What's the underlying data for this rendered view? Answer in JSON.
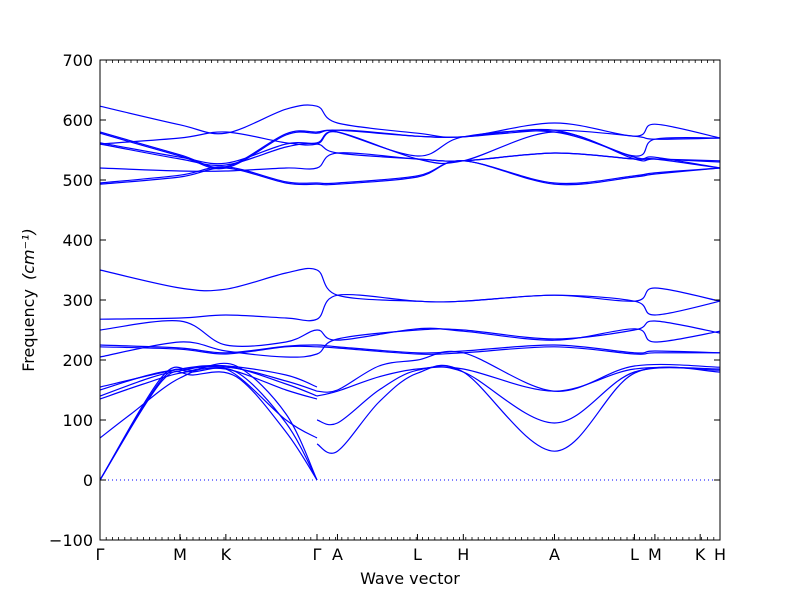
{
  "chart_data": {
    "type": "line",
    "title": "",
    "xlabel": "Wave vector",
    "ylabel": "Frequency",
    "ylabel_unit": "(cm⁻¹)",
    "ylim": [
      -100,
      700
    ],
    "yticks": [
      -100,
      0,
      100,
      200,
      300,
      400,
      500,
      600,
      700
    ],
    "y_tick_labels": [
      "−100",
      "0",
      "100",
      "200",
      "300",
      "400",
      "500",
      "600",
      "700"
    ],
    "x_high_symmetry_points": [
      {
        "label": "Γ",
        "x": 0.0
      },
      {
        "label": "M",
        "x": 0.129
      },
      {
        "label": "K",
        "x": 0.203
      },
      {
        "label": "Γ",
        "x": 0.35
      },
      {
        "label": "A",
        "x": 0.383
      },
      {
        "label": "L",
        "x": 0.512
      },
      {
        "label": "H",
        "x": 0.586
      },
      {
        "label": "A",
        "x": 0.733
      },
      {
        "label": "L",
        "x": 0.862
      },
      {
        "label": "M",
        "x": 0.895
      },
      {
        "label": "K",
        "x": 0.968
      },
      {
        "label": "H",
        "x": 1.0
      }
    ],
    "zero_line": {
      "y": 0,
      "style": "dotted"
    },
    "colors": {
      "band": "#0000ff",
      "axis": "#000000"
    },
    "series": [
      {
        "points": [
          [
            0,
            0
          ],
          [
            0.1,
            165
          ],
          [
            0.15,
            175
          ],
          [
            0.22,
            172
          ],
          [
            0.3,
            80
          ],
          [
            0.35,
            0
          ]
        ]
      },
      {
        "points": [
          [
            0,
            0
          ],
          [
            0.1,
            168
          ],
          [
            0.15,
            180
          ],
          [
            0.22,
            180
          ],
          [
            0.3,
            95
          ],
          [
            0.35,
            0
          ]
        ]
      },
      {
        "points": [
          [
            0,
            0
          ],
          [
            0.1,
            172
          ],
          [
            0.15,
            183
          ],
          [
            0.22,
            190
          ],
          [
            0.3,
            110
          ],
          [
            0.35,
            0
          ]
        ]
      },
      {
        "points": [
          [
            0,
            70
          ],
          [
            0.05,
            110
          ],
          [
            0.129,
            170
          ],
          [
            0.203,
            185
          ],
          [
            0.3,
            100
          ],
          [
            0.35,
            70
          ]
        ]
      },
      {
        "points": [
          [
            0,
            135
          ],
          [
            0.07,
            160
          ],
          [
            0.129,
            178
          ],
          [
            0.203,
            185
          ],
          [
            0.3,
            150
          ],
          [
            0.35,
            135
          ]
        ]
      },
      {
        "points": [
          [
            0,
            140
          ],
          [
            0.08,
            170
          ],
          [
            0.129,
            182
          ],
          [
            0.203,
            190
          ],
          [
            0.3,
            160
          ],
          [
            0.35,
            140
          ]
        ]
      },
      {
        "points": [
          [
            0,
            150
          ],
          [
            0.1,
            180
          ],
          [
            0.203,
            188
          ],
          [
            0.3,
            165
          ],
          [
            0.35,
            148
          ]
        ]
      },
      {
        "points": [
          [
            0,
            155
          ],
          [
            0.129,
            185
          ],
          [
            0.203,
            190
          ],
          [
            0.3,
            175
          ],
          [
            0.35,
            155
          ]
        ]
      },
      {
        "points": [
          [
            0.35,
            100
          ],
          [
            0.383,
            95
          ],
          [
            0.45,
            150
          ],
          [
            0.512,
            183
          ],
          [
            0.586,
            180
          ],
          [
            0.733,
            95
          ],
          [
            0.862,
            180
          ],
          [
            1.0,
            183
          ]
        ]
      },
      {
        "points": [
          [
            0.35,
            60
          ],
          [
            0.383,
            48
          ],
          [
            0.45,
            130
          ],
          [
            0.512,
            178
          ],
          [
            0.586,
            180
          ],
          [
            0.733,
            48
          ],
          [
            0.862,
            178
          ],
          [
            1.0,
            180
          ]
        ]
      },
      {
        "points": [
          [
            0.35,
            140
          ],
          [
            0.383,
            148
          ],
          [
            0.45,
            172
          ],
          [
            0.512,
            185
          ],
          [
            0.586,
            185
          ],
          [
            0.733,
            148
          ],
          [
            0.862,
            185
          ],
          [
            1.0,
            185
          ]
        ]
      },
      {
        "points": [
          [
            0.35,
            148
          ],
          [
            0.383,
            150
          ],
          [
            0.45,
            190
          ],
          [
            0.512,
            200
          ],
          [
            0.586,
            212
          ],
          [
            0.733,
            148
          ],
          [
            0.862,
            190
          ],
          [
            1.0,
            188
          ]
        ]
      },
      {
        "points": [
          [
            0,
            205
          ],
          [
            0.129,
            230
          ],
          [
            0.203,
            215
          ],
          [
            0.3,
            205
          ],
          [
            0.35,
            210
          ],
          [
            0.383,
            235
          ],
          [
            0.512,
            250
          ],
          [
            0.586,
            250
          ],
          [
            0.733,
            235
          ],
          [
            0.862,
            250
          ],
          [
            0.895,
            265
          ],
          [
            1.0,
            245
          ]
        ]
      },
      {
        "points": [
          [
            0,
            225
          ],
          [
            0.129,
            220
          ],
          [
            0.203,
            212
          ],
          [
            0.3,
            223
          ],
          [
            0.35,
            225
          ],
          [
            0.383,
            222
          ],
          [
            0.512,
            212
          ],
          [
            0.586,
            215
          ],
          [
            0.733,
            225
          ],
          [
            0.862,
            212
          ],
          [
            0.895,
            215
          ],
          [
            1.0,
            212
          ]
        ]
      },
      {
        "points": [
          [
            0,
            222
          ],
          [
            0.129,
            218
          ],
          [
            0.203,
            210
          ],
          [
            0.3,
            222
          ],
          [
            0.35,
            222
          ],
          [
            0.383,
            220
          ],
          [
            0.512,
            210
          ],
          [
            0.586,
            212
          ],
          [
            0.733,
            222
          ],
          [
            0.862,
            210
          ],
          [
            0.895,
            212
          ],
          [
            1.0,
            212
          ]
        ]
      },
      {
        "points": [
          [
            0,
            250
          ],
          [
            0.129,
            265
          ],
          [
            0.203,
            225
          ],
          [
            0.3,
            230
          ],
          [
            0.35,
            250
          ],
          [
            0.383,
            233
          ],
          [
            0.512,
            252
          ],
          [
            0.586,
            248
          ],
          [
            0.733,
            233
          ],
          [
            0.862,
            252
          ],
          [
            0.895,
            230
          ],
          [
            1.0,
            248
          ]
        ]
      },
      {
        "points": [
          [
            0,
            268
          ],
          [
            0.129,
            270
          ],
          [
            0.203,
            275
          ],
          [
            0.3,
            270
          ],
          [
            0.35,
            268
          ],
          [
            0.383,
            308
          ],
          [
            0.512,
            298
          ],
          [
            0.586,
            298
          ],
          [
            0.733,
            308
          ],
          [
            0.862,
            298
          ],
          [
            0.895,
            275
          ],
          [
            1.0,
            298
          ]
        ]
      },
      {
        "points": [
          [
            0,
            350
          ],
          [
            0.129,
            320
          ],
          [
            0.203,
            318
          ],
          [
            0.3,
            345
          ],
          [
            0.35,
            350
          ],
          [
            0.383,
            308
          ],
          [
            0.512,
            298
          ],
          [
            0.586,
            298
          ],
          [
            0.733,
            308
          ],
          [
            0.862,
            298
          ],
          [
            0.895,
            320
          ],
          [
            1.0,
            298
          ]
        ]
      },
      {
        "points": [
          [
            0,
            493
          ],
          [
            0.129,
            505
          ],
          [
            0.203,
            520
          ],
          [
            0.3,
            495
          ],
          [
            0.35,
            493
          ],
          [
            0.383,
            493
          ],
          [
            0.512,
            505
          ],
          [
            0.586,
            532
          ],
          [
            0.733,
            493
          ],
          [
            0.862,
            505
          ],
          [
            0.895,
            510
          ],
          [
            1.0,
            520
          ]
        ]
      },
      {
        "points": [
          [
            0,
            495
          ],
          [
            0.129,
            508
          ],
          [
            0.203,
            522
          ],
          [
            0.3,
            497
          ],
          [
            0.35,
            495
          ],
          [
            0.383,
            495
          ],
          [
            0.512,
            507
          ],
          [
            0.586,
            532
          ],
          [
            0.733,
            495
          ],
          [
            0.862,
            507
          ],
          [
            0.895,
            512
          ],
          [
            1.0,
            520
          ]
        ]
      },
      {
        "points": [
          [
            0,
            520
          ],
          [
            0.129,
            515
          ],
          [
            0.203,
            515
          ],
          [
            0.3,
            520
          ],
          [
            0.35,
            520
          ],
          [
            0.383,
            545
          ],
          [
            0.512,
            535
          ],
          [
            0.586,
            532
          ],
          [
            0.733,
            545
          ],
          [
            0.862,
            535
          ],
          [
            0.895,
            535
          ],
          [
            1.0,
            520
          ]
        ]
      },
      {
        "points": [
          [
            0,
            560
          ],
          [
            0.129,
            535
          ],
          [
            0.203,
            525
          ],
          [
            0.3,
            555
          ],
          [
            0.35,
            560
          ],
          [
            0.383,
            545
          ],
          [
            0.512,
            535
          ],
          [
            0.586,
            532
          ],
          [
            0.733,
            545
          ],
          [
            0.862,
            535
          ],
          [
            0.895,
            535
          ],
          [
            1.0,
            530
          ]
        ]
      },
      {
        "points": [
          [
            0,
            562
          ],
          [
            0.129,
            538
          ],
          [
            0.203,
            528
          ],
          [
            0.3,
            560
          ],
          [
            0.35,
            562
          ],
          [
            0.383,
            580
          ],
          [
            0.512,
            535
          ],
          [
            0.586,
            532
          ],
          [
            0.733,
            580
          ],
          [
            0.862,
            535
          ],
          [
            0.895,
            535
          ],
          [
            1.0,
            532
          ]
        ]
      },
      {
        "points": [
          [
            0,
            578
          ],
          [
            0.129,
            540
          ],
          [
            0.203,
            520
          ],
          [
            0.3,
            575
          ],
          [
            0.35,
            578
          ],
          [
            0.383,
            580
          ],
          [
            0.512,
            540
          ],
          [
            0.586,
            572
          ],
          [
            0.733,
            580
          ],
          [
            0.862,
            538
          ],
          [
            0.895,
            538
          ],
          [
            1.0,
            520
          ]
        ]
      },
      {
        "points": [
          [
            0,
            580
          ],
          [
            0.129,
            542
          ],
          [
            0.203,
            522
          ],
          [
            0.3,
            577
          ],
          [
            0.35,
            580
          ],
          [
            0.383,
            583
          ],
          [
            0.512,
            573
          ],
          [
            0.586,
            572
          ],
          [
            0.733,
            583
          ],
          [
            0.862,
            540
          ],
          [
            0.895,
            568
          ],
          [
            1.0,
            570
          ]
        ]
      },
      {
        "points": [
          [
            0,
            560
          ],
          [
            0.129,
            570
          ],
          [
            0.203,
            580
          ],
          [
            0.3,
            562
          ],
          [
            0.35,
            560
          ],
          [
            0.383,
            583
          ],
          [
            0.512,
            573
          ],
          [
            0.586,
            572
          ],
          [
            0.733,
            583
          ],
          [
            0.862,
            573
          ],
          [
            0.895,
            568
          ],
          [
            1.0,
            570
          ]
        ]
      },
      {
        "points": [
          [
            0,
            623
          ],
          [
            0.129,
            592
          ],
          [
            0.203,
            578
          ],
          [
            0.3,
            618
          ],
          [
            0.35,
            623
          ],
          [
            0.383,
            595
          ],
          [
            0.512,
            578
          ],
          [
            0.586,
            572
          ],
          [
            0.733,
            595
          ],
          [
            0.862,
            573
          ],
          [
            0.895,
            593
          ],
          [
            1.0,
            570
          ]
        ]
      }
    ]
  }
}
